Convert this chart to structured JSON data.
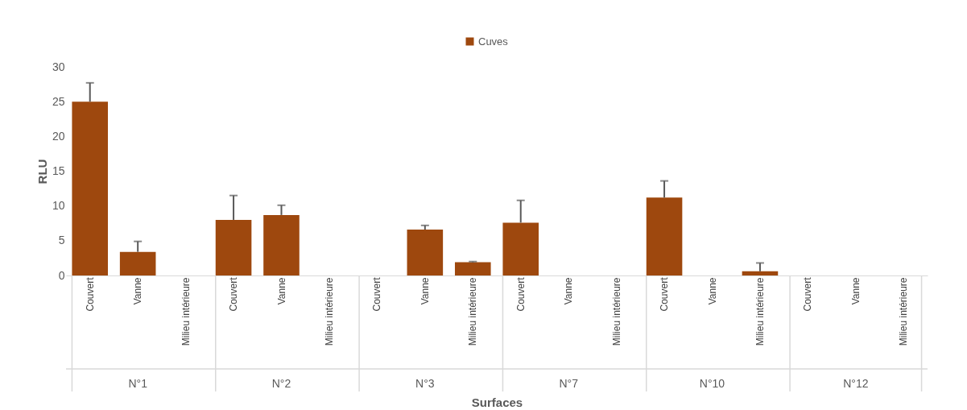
{
  "chart_data": {
    "type": "bar",
    "xlabel": "Surfaces",
    "ylabel": "RLU",
    "legend": "top",
    "categories": [
      "Couvert",
      "Vanne",
      "Milieu intérieure",
      "Couvert",
      "Vanne",
      "Milieu intérieure",
      "Couvert",
      "Vanne",
      "Milieu intérieure",
      "Couvert",
      "Vanne",
      "Milieu intérieure",
      "Couvert",
      "Vanne",
      "Milieu intérieure",
      "Couvert",
      "Vanne",
      "Milieu intérieure"
    ],
    "annotations": [
      "N°1",
      "N°2",
      "N°3",
      "N°7",
      "N°10",
      "N°12"
    ],
    "series": [
      {
        "name": "Cuves",
        "color": "#9e480e",
        "values": [
          25,
          3.4,
          null,
          8.0,
          8.7,
          null,
          null,
          6.6,
          1.9,
          7.6,
          null,
          null,
          11.2,
          null,
          0.6,
          null,
          null,
          null
        ],
        "errors": [
          2.7,
          1.5,
          null,
          3.5,
          1.4,
          null,
          null,
          0.6,
          0.1,
          3.2,
          null,
          null,
          2.4,
          null,
          1.2,
          null,
          null,
          null
        ]
      }
    ],
    "ylim": [
      0,
      30
    ],
    "yticks": [
      0,
      5,
      10,
      15,
      20,
      25,
      30
    ],
    "grid": false
  }
}
